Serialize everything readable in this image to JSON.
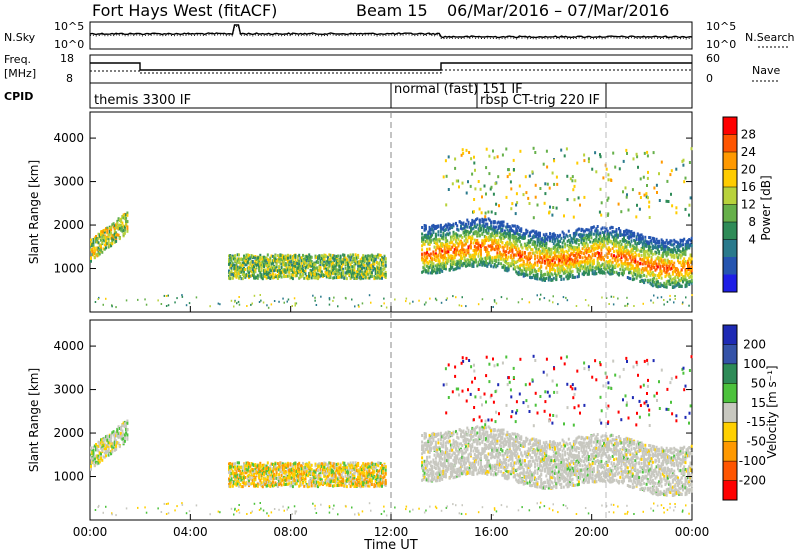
{
  "header": {
    "station": "Fort Hays West (fitACF)",
    "beam": "Beam 15",
    "date_range": "06/Mar/2016 – 07/Mar/2016"
  },
  "nsky_panel": {
    "left_label": "N.Sky",
    "right_label": "N.Search",
    "left_ticks": [
      "10^5",
      "10^0"
    ],
    "right_ticks": [
      "10^5",
      "10^0"
    ]
  },
  "freq_panel": {
    "left_label_line1": "Freq.",
    "left_label_line2": "[MHz]",
    "right_label": "Nave",
    "left_ticks": [
      "18",
      "8"
    ],
    "right_ticks": [
      "60",
      "0"
    ]
  },
  "cpid_panel": {
    "label": "CPID",
    "modes": [
      "themis 3300 IF",
      "normal (fast) 151 IF",
      "rbsp CT-trig 220 IF"
    ]
  },
  "chart_data": [
    {
      "type": "heatmap",
      "panel": "power",
      "ylabel": "Slant Range [km]",
      "colorbar_label": "Power [dB]",
      "colorbar_ticks": [
        "28",
        "24",
        "20",
        "16",
        "12",
        "8",
        "4"
      ],
      "colorbar_colors": [
        "#ff0000",
        "#ff5500",
        "#ff9900",
        "#ffcc00",
        "#b8d23c",
        "#66b04a",
        "#2e8b57",
        "#2a7a8c",
        "#2555b0",
        "#1e1ee6"
      ],
      "ylim": [
        0,
        4600
      ],
      "yticks": [
        1000,
        2000,
        3000,
        4000
      ],
      "x_range_hours": [
        0,
        24
      ],
      "color_values_dB": [
        {
          "start_h": 0.0,
          "end_h": 1.5,
          "range_km": [
            1200,
            2300
          ],
          "level": 0.7
        },
        {
          "start_h": 5.5,
          "end_h": 11.8,
          "range_km": [
            800,
            1400
          ],
          "level": 0.55
        },
        {
          "start_h": 13.2,
          "end_h": 24.0,
          "range_km": [
            900,
            2300
          ],
          "level": 0.85
        }
      ]
    },
    {
      "type": "heatmap",
      "panel": "velocity",
      "ylabel": "Slant Range [km]",
      "colorbar_label": "Velocity [m s⁻¹]",
      "colorbar_ticks": [
        "200",
        "100",
        "50",
        "15",
        "-15",
        "-50",
        "-100",
        "-200"
      ],
      "colorbar_colors": [
        "#1e2ab4",
        "#3553a8",
        "#2e8b57",
        "#4cc23c",
        "#c8c8c0",
        "#ffd000",
        "#ff9900",
        "#ff5500",
        "#ff0000"
      ],
      "ylim": [
        0,
        4600
      ],
      "yticks": [
        1000,
        2000,
        3000,
        4000
      ],
      "x_range_hours": [
        0,
        24
      ]
    }
  ],
  "x_axis": {
    "title": "Time UT",
    "ticks": [
      "00:00",
      "04:00",
      "08:00",
      "12:00",
      "16:00",
      "20:00",
      "00:00"
    ]
  }
}
